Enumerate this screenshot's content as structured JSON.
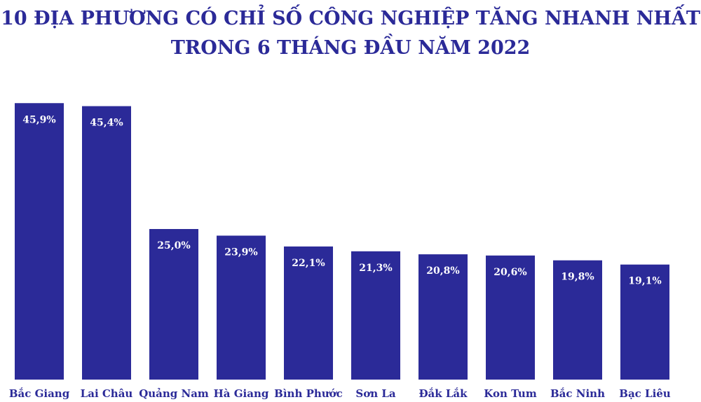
{
  "title_line1": "10 ĐỊA PHƯƠNG CÓ CHỈ SỐ CÔNG NGHIỆP TĂNG NHANH NHẤT",
  "title_line2": "TRONG 6 THÁNG ĐẦU NĂM 2022",
  "colors": {
    "bar": "#2b2a98",
    "title": "#2b2a98",
    "value_label": "#ffffff",
    "category_label": "#2b2a98",
    "background": "#ffffff"
  },
  "chart_data": {
    "type": "bar",
    "title": "10 ĐỊA PHƯƠNG CÓ CHỈ SỐ CÔNG NGHIỆP TĂNG NHANH NHẤT TRONG 6 THÁNG ĐẦU NĂM 2022",
    "categories": [
      "Bắc Giang",
      "Lai Châu",
      "Quảng Nam",
      "Hà Giang",
      "Bình Phước",
      "Sơn La",
      "Đắk Lắk",
      "Kon Tum",
      "Bắc Ninh",
      "Bạc Liêu"
    ],
    "values": [
      45.9,
      45.4,
      25.0,
      23.9,
      22.1,
      21.3,
      20.8,
      20.6,
      19.8,
      19.1
    ],
    "value_labels": [
      "45,9%",
      "45,4%",
      "25,0%",
      "23,9%",
      "22,1%",
      "21,3%",
      "20,8%",
      "20,6%",
      "19,8%",
      "19,1%"
    ],
    "xlabel": "",
    "ylabel": "",
    "grid": false,
    "legend": "none",
    "axes_visible": false
  }
}
